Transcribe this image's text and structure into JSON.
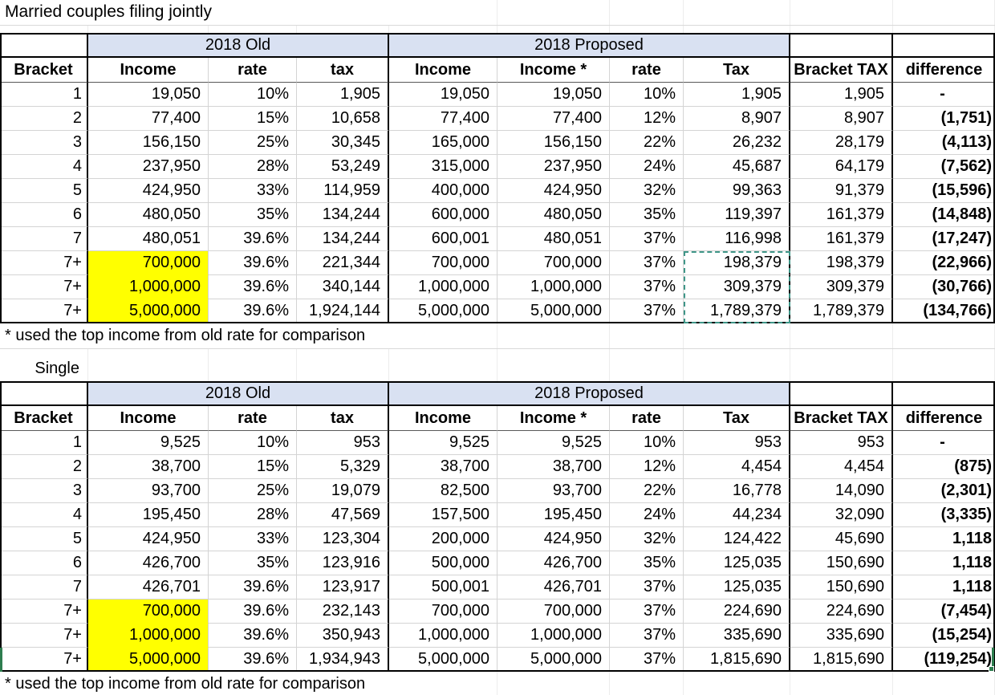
{
  "title": "Married couples filing jointly",
  "single_label": "Single",
  "footnote": "* used the top income from old rate for comparison",
  "band": {
    "old": "2018 Old",
    "proposed": "2018 Proposed"
  },
  "headers": [
    "Bracket",
    "Income",
    "rate",
    "tax",
    "Income",
    "Income *",
    "rate",
    "Tax",
    "Bracket TAX",
    "difference"
  ],
  "colors": {
    "highlight_yellow": "#ffff00",
    "band_fill": "#d9e1f2",
    "marching_ants_teal": "#3f9688",
    "selection_green": "#2e7d4f",
    "grid_line": "#d4d4d4"
  },
  "married_rows": [
    [
      "1",
      "19,050",
      "10%",
      "1,905",
      "19,050",
      "19,050",
      "10%",
      "1,905",
      "1,905",
      "-"
    ],
    [
      "2",
      "77,400",
      "15%",
      "10,658",
      "77,400",
      "77,400",
      "12%",
      "8,907",
      "8,907",
      "(1,751)"
    ],
    [
      "3",
      "156,150",
      "25%",
      "30,345",
      "165,000",
      "156,150",
      "22%",
      "26,232",
      "28,179",
      "(4,113)"
    ],
    [
      "4",
      "237,950",
      "28%",
      "53,249",
      "315,000",
      "237,950",
      "24%",
      "45,687",
      "64,179",
      "(7,562)"
    ],
    [
      "5",
      "424,950",
      "33%",
      "114,959",
      "400,000",
      "424,950",
      "32%",
      "99,363",
      "91,379",
      "(15,596)"
    ],
    [
      "6",
      "480,050",
      "35%",
      "134,244",
      "600,000",
      "480,050",
      "35%",
      "119,397",
      "161,379",
      "(14,848)"
    ],
    [
      "7",
      "480,051",
      "39.6%",
      "134,244",
      "600,001",
      "480,051",
      "37%",
      "116,998",
      "161,379",
      "(17,247)"
    ],
    [
      "7+",
      "700,000",
      "39.6%",
      "221,344",
      "700,000",
      "700,000",
      "37%",
      "198,379",
      "198,379",
      "(22,966)"
    ],
    [
      "7+",
      "1,000,000",
      "39.6%",
      "340,144",
      "1,000,000",
      "1,000,000",
      "37%",
      "309,379",
      "309,379",
      "(30,766)"
    ],
    [
      "7+",
      "5,000,000",
      "39.6%",
      "1,924,144",
      "5,000,000",
      "5,000,000",
      "37%",
      "1,789,379",
      "1,789,379",
      "(134,766)"
    ]
  ],
  "single_rows": [
    [
      "1",
      "9,525",
      "10%",
      "953",
      "9,525",
      "9,525",
      "10%",
      "953",
      "953",
      "-"
    ],
    [
      "2",
      "38,700",
      "15%",
      "5,329",
      "38,700",
      "38,700",
      "12%",
      "4,454",
      "4,454",
      "(875)"
    ],
    [
      "3",
      "93,700",
      "25%",
      "19,079",
      "82,500",
      "93,700",
      "22%",
      "16,778",
      "14,090",
      "(2,301)"
    ],
    [
      "4",
      "195,450",
      "28%",
      "47,569",
      "157,500",
      "195,450",
      "24%",
      "44,234",
      "32,090",
      "(3,335)"
    ],
    [
      "5",
      "424,950",
      "33%",
      "123,304",
      "200,000",
      "424,950",
      "32%",
      "124,422",
      "45,690",
      "1,118"
    ],
    [
      "6",
      "426,700",
      "35%",
      "123,916",
      "500,000",
      "426,700",
      "35%",
      "125,035",
      "150,690",
      "1,118"
    ],
    [
      "7",
      "426,701",
      "39.6%",
      "123,917",
      "500,001",
      "426,701",
      "37%",
      "125,035",
      "150,690",
      "1,118"
    ],
    [
      "7+",
      "700,000",
      "39.6%",
      "232,143",
      "700,000",
      "700,000",
      "37%",
      "224,690",
      "224,690",
      "(7,454)"
    ],
    [
      "7+",
      "1,000,000",
      "39.6%",
      "350,943",
      "1,000,000",
      "1,000,000",
      "37%",
      "335,690",
      "335,690",
      "(15,254)"
    ],
    [
      "7+",
      "5,000,000",
      "39.6%",
      "1,934,943",
      "5,000,000",
      "5,000,000",
      "37%",
      "1,815,690",
      "1,815,690",
      "(119,254)"
    ]
  ]
}
